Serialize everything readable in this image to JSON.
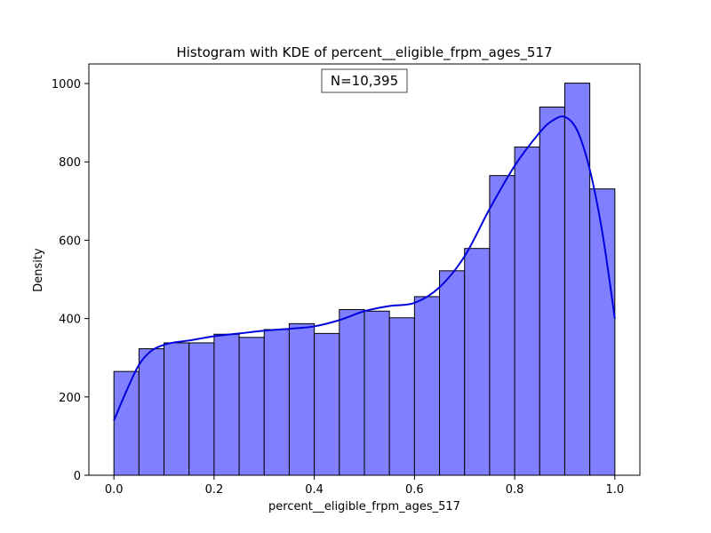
{
  "chart_data": {
    "type": "bar",
    "title": "Histogram with KDE of percent__eligible_frpm_ages_517",
    "xlabel": "percent__eligible_frpm_ages_517",
    "ylabel": "Density",
    "annotation": "N=10,395",
    "xlim": [
      -0.05,
      1.05
    ],
    "ylim": [
      0,
      1050
    ],
    "xticks": [
      0.0,
      0.2,
      0.4,
      0.6,
      0.8,
      1.0
    ],
    "xtick_labels": [
      "0.0",
      "0.2",
      "0.4",
      "0.6",
      "0.8",
      "1.0"
    ],
    "yticks": [
      0,
      200,
      400,
      600,
      800,
      1000
    ],
    "ytick_labels": [
      "0",
      "200",
      "400",
      "600",
      "800",
      "1000"
    ],
    "grid": false,
    "bin_edges": [
      0.0,
      0.05,
      0.1,
      0.15,
      0.2,
      0.25,
      0.3,
      0.35,
      0.4,
      0.45,
      0.5,
      0.55,
      0.6,
      0.65,
      0.7,
      0.75,
      0.8,
      0.85,
      0.9,
      0.95,
      1.0
    ],
    "values": [
      265,
      323,
      338,
      338,
      360,
      352,
      372,
      387,
      362,
      423,
      419,
      402,
      456,
      522,
      579,
      765,
      838,
      940,
      1001,
      731
    ],
    "kde": {
      "x": [
        0.0,
        0.025,
        0.05,
        0.075,
        0.1,
        0.125,
        0.15,
        0.2,
        0.25,
        0.3,
        0.35,
        0.4,
        0.45,
        0.5,
        0.55,
        0.6,
        0.65,
        0.7,
        0.75,
        0.8,
        0.85,
        0.875,
        0.9,
        0.925,
        0.95,
        0.975,
        1.0
      ],
      "y": [
        140,
        215,
        282,
        318,
        333,
        340,
        344,
        355,
        362,
        369,
        374,
        380,
        396,
        419,
        432,
        440,
        480,
        559,
        680,
        790,
        875,
        905,
        915,
        880,
        780,
        620,
        400
      ]
    },
    "colors": {
      "bar_fill": "#8080ff",
      "bar_edge": "#000000",
      "kde_line": "#0000dd"
    }
  }
}
